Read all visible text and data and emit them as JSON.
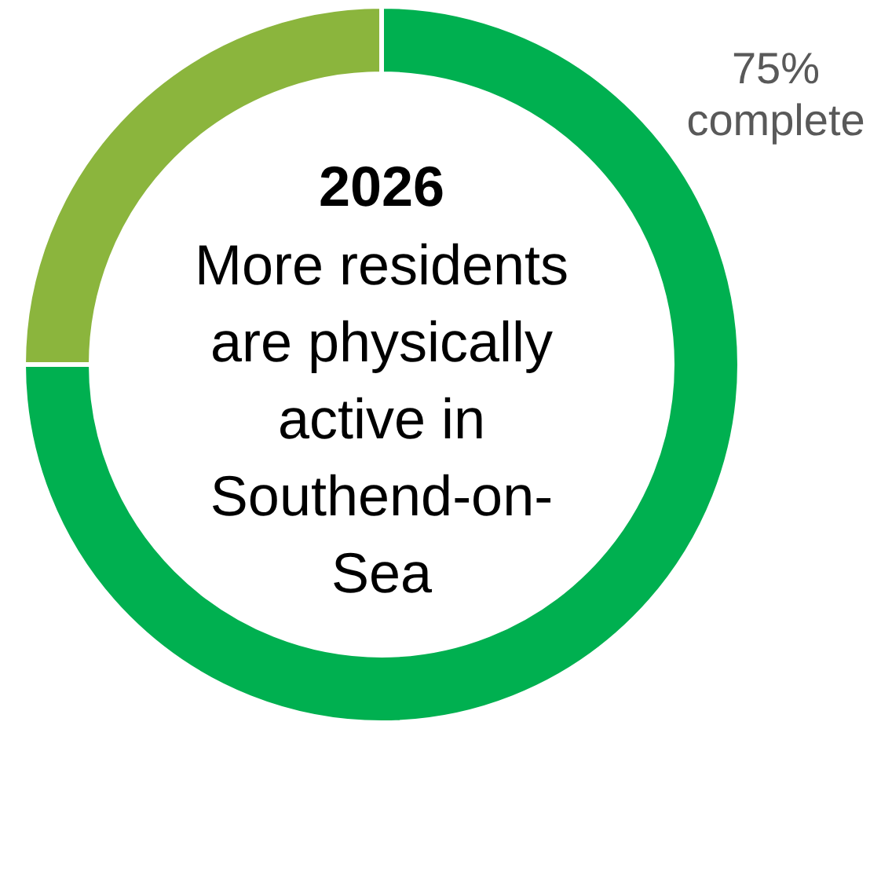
{
  "chart_data": {
    "type": "donut",
    "title": "2026",
    "subtitle": "More residents are physically active in Southend-on-Sea",
    "categories": [
      null,
      null
    ],
    "values": [
      75,
      25
    ],
    "colors": [
      "#00b050",
      "#8bb53d"
    ],
    "annotations": [
      "75% complete"
    ]
  }
}
